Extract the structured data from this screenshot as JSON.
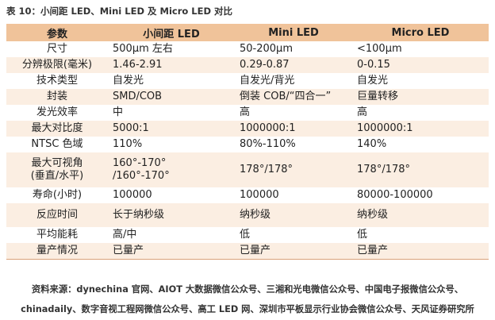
{
  "title": "表 10：小间距 LED、Mini LED 及 Micro LED 对比",
  "table": {
    "headers": [
      "参数",
      "小间距 LED",
      "Mini LED",
      "Micro LED"
    ],
    "rows": [
      [
        "尺寸",
        "500μm 左右",
        "50-200μm",
        "<100μm"
      ],
      [
        "分辨极限(毫米)",
        "1.46-2.91",
        "0.29-0.87",
        "0-0.15"
      ],
      [
        "技术类型",
        "自发光",
        "自发光/背光",
        "自发光"
      ],
      [
        "封装",
        "SMD/COB",
        "倒装 COB/“四合一”",
        "巨量转移"
      ],
      [
        "发光效率",
        "中",
        "高",
        "高"
      ],
      [
        "最大对比度",
        "5000:1",
        "1000000:1",
        "1000000:1"
      ],
      [
        "NTSC 色域",
        "110%",
        "80%-110%",
        "140%"
      ],
      [
        "最大可视角\n(垂直/水平)",
        "160°-170°\n/160°-170°",
        "178°/178°",
        "178°/178°"
      ],
      [
        "寿命(小时)",
        "100000",
        "100000",
        "80000-100000"
      ],
      [
        "反应时间",
        "长于纳秒级",
        "纳秒级",
        "纳秒级"
      ],
      [
        "平均能耗",
        "高/中",
        "低",
        "低"
      ],
      [
        "量产情况",
        "已量产",
        "已量产",
        "已量产"
      ]
    ]
  },
  "source_line1": "资料来源：dynechina 官网、AIOT 大数据微信公众号、三湘和光电微信公众号、中国电子报微信公众号、",
  "source_line2": "chinadaily、数字音视工程网微信公众号、高工 LED 网、深圳市平板显示行业协会微信公众号、天风证券研究所",
  "colors": {
    "header_bg": "#f0c39a",
    "alt_row_bg": "#fbeee2"
  }
}
